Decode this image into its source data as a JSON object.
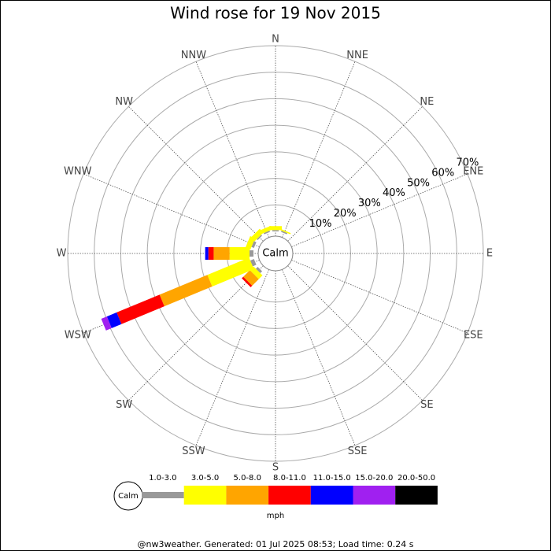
{
  "chart_data": {
    "type": "windrose",
    "title": "Wind rose for 19 Nov 2015",
    "directions": [
      "N",
      "NNE",
      "NE",
      "ENE",
      "E",
      "ESE",
      "SE",
      "SSE",
      "S",
      "SSW",
      "SW",
      "WSW",
      "W",
      "WNW",
      "NW",
      "NNW"
    ],
    "center_label": "Calm",
    "rlim": [
      0,
      70
    ],
    "rticks": [
      {
        "value": 10,
        "label": "10%"
      },
      {
        "value": 20,
        "label": "20%"
      },
      {
        "value": 30,
        "label": "30%"
      },
      {
        "value": 40,
        "label": "40%"
      },
      {
        "value": 50,
        "label": "50%"
      },
      {
        "value": 60,
        "label": "60%"
      },
      {
        "value": 70,
        "label": "70%"
      }
    ],
    "series": [
      {
        "name": "1.0-3.0",
        "color": "#999999",
        "values": [
          0.5,
          0.5,
          0,
          0,
          0,
          0,
          0,
          0,
          0,
          0,
          1,
          1.5,
          1.5,
          1,
          0.5,
          0.5
        ]
      },
      {
        "name": "3.0-5.0",
        "color": "#ffff00",
        "values": [
          1.5,
          0.5,
          0,
          0,
          0,
          0,
          0,
          0,
          0,
          0,
          2,
          17,
          7.5,
          2,
          2,
          1.5
        ]
      },
      {
        "name": "5.0-8.0",
        "color": "#ffa500",
        "values": [
          0,
          0,
          0,
          0,
          0,
          0,
          0,
          0,
          0,
          0,
          3.5,
          19.5,
          6,
          0,
          0,
          0
        ]
      },
      {
        "name": "8.0-11.0",
        "color": "#ff0000",
        "values": [
          0,
          0,
          0,
          0,
          0,
          0,
          0,
          0,
          0,
          0,
          0.8,
          17.5,
          2,
          0,
          0,
          0
        ]
      },
      {
        "name": "11.0-15.0",
        "color": "#0000ff",
        "values": [
          0,
          0,
          0,
          0,
          0,
          0,
          0,
          0,
          0,
          0,
          0,
          4,
          1.2,
          0,
          0,
          0
        ]
      },
      {
        "name": "15.0-20.0",
        "color": "#a020f0",
        "values": [
          0,
          0,
          0,
          0,
          0,
          0,
          0,
          0,
          0,
          0,
          0,
          2.3,
          0,
          0,
          0,
          0
        ]
      },
      {
        "name": "20.0-50.0",
        "color": "#000000",
        "values": [
          0,
          0,
          0,
          0,
          0,
          0,
          0,
          0,
          0,
          0,
          0,
          0,
          0,
          0,
          0,
          0
        ]
      }
    ],
    "legend_unit": "mph",
    "footer": "@nw3weather. Generated: 01 Jul 2025 08:53; Load time: 0.24 s"
  }
}
